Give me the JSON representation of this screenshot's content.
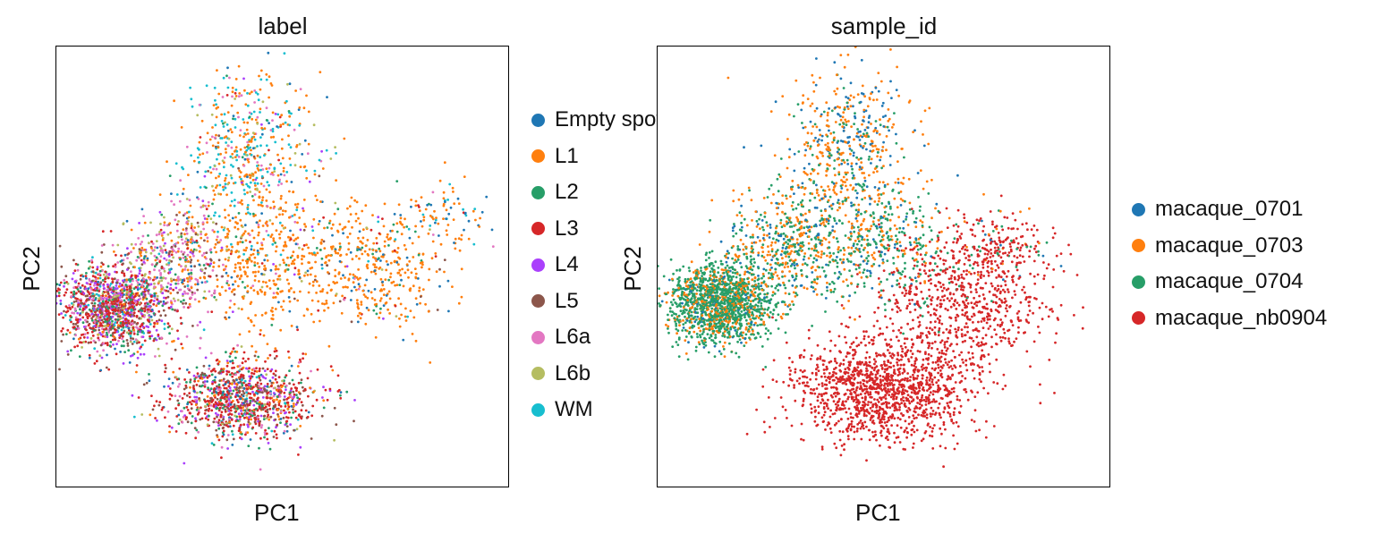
{
  "chart_data": [
    {
      "type": "scatter",
      "title": "label",
      "xlabel": "PC1",
      "ylabel": "PC2",
      "xlim": [
        0,
        100
      ],
      "ylim": [
        0,
        100
      ],
      "grid": false,
      "legend_position": "right",
      "series": [
        {
          "name": "Empty spots",
          "color": "#1f77b4"
        },
        {
          "name": "L1",
          "color": "#ff7f0e"
        },
        {
          "name": "L2",
          "color": "#279e68"
        },
        {
          "name": "L3",
          "color": "#d62728"
        },
        {
          "name": "L4",
          "color": "#aa40fc"
        },
        {
          "name": "L5",
          "color": "#8c564b"
        },
        {
          "name": "L6a",
          "color": "#e377c2"
        },
        {
          "name": "L6b",
          "color": "#b5bd61"
        },
        {
          "name": "WM",
          "color": "#17becf"
        }
      ],
      "clusters": [
        {
          "center": [
            13,
            41
          ],
          "spread": [
            6.5,
            5
          ],
          "n": 1400,
          "mix": [
            0.03,
            0.05,
            0.1,
            0.3,
            0.14,
            0.14,
            0.14,
            0.06,
            0.04
          ]
        },
        {
          "center": [
            28,
            52
          ],
          "spread": [
            6,
            6
          ],
          "n": 400,
          "mix": [
            0.03,
            0.18,
            0.05,
            0.05,
            0.05,
            0.07,
            0.35,
            0.2,
            0.02
          ]
        },
        {
          "center": [
            41,
            20
          ],
          "spread": [
            8,
            4.5
          ],
          "n": 1100,
          "mix": [
            0.05,
            0.08,
            0.12,
            0.35,
            0.12,
            0.14,
            0.08,
            0.04,
            0.02
          ]
        },
        {
          "center": [
            42,
            75
          ],
          "spread": [
            7,
            10
          ],
          "n": 500,
          "mix": [
            0.04,
            0.4,
            0.03,
            0.01,
            0.02,
            0.02,
            0.1,
            0.08,
            0.3
          ]
        },
        {
          "center": [
            48,
            52
          ],
          "spread": [
            10,
            8
          ],
          "n": 500,
          "mix": [
            0.06,
            0.78,
            0.05,
            0.02,
            0.01,
            0.02,
            0.03,
            0.02,
            0.01
          ]
        },
        {
          "center": [
            72,
            50
          ],
          "spread": [
            8,
            7
          ],
          "n": 350,
          "mix": [
            0.12,
            0.72,
            0.06,
            0.02,
            0.01,
            0.02,
            0.01,
            0.02,
            0.02
          ]
        },
        {
          "center": [
            85,
            62
          ],
          "spread": [
            6,
            4
          ],
          "n": 80,
          "mix": [
            0.2,
            0.55,
            0.05,
            0.02,
            0.0,
            0.0,
            0.03,
            0.0,
            0.15
          ]
        }
      ]
    },
    {
      "type": "scatter",
      "title": "sample_id",
      "xlabel": "PC1",
      "ylabel": "PC2",
      "xlim": [
        0,
        100
      ],
      "ylim": [
        0,
        100
      ],
      "grid": false,
      "legend_position": "right",
      "series": [
        {
          "name": "macaque_0701",
          "color": "#1f77b4"
        },
        {
          "name": "macaque_0703",
          "color": "#ff7f0e"
        },
        {
          "name": "macaque_0704",
          "color": "#279e68"
        },
        {
          "name": "macaque_nb0904",
          "color": "#d62728"
        }
      ],
      "clusters": [
        {
          "center": [
            14,
            42
          ],
          "spread": [
            6,
            4.5
          ],
          "n": 1500,
          "mix": [
            0.06,
            0.24,
            0.7,
            0.0
          ]
        },
        {
          "center": [
            30,
            55
          ],
          "spread": [
            7,
            6
          ],
          "n": 500,
          "mix": [
            0.15,
            0.45,
            0.4,
            0.0
          ]
        },
        {
          "center": [
            42,
            76
          ],
          "spread": [
            7,
            10
          ],
          "n": 550,
          "mix": [
            0.3,
            0.55,
            0.15,
            0.0
          ]
        },
        {
          "center": [
            50,
            55
          ],
          "spread": [
            9,
            7
          ],
          "n": 400,
          "mix": [
            0.1,
            0.3,
            0.6,
            0.0
          ]
        },
        {
          "center": [
            50,
            22
          ],
          "spread": [
            10,
            6
          ],
          "n": 1300,
          "mix": [
            0.0,
            0.0,
            0.0,
            1.0
          ]
        },
        {
          "center": [
            68,
            42
          ],
          "spread": [
            9,
            8
          ],
          "n": 700,
          "mix": [
            0.0,
            0.0,
            0.0,
            1.0
          ]
        },
        {
          "center": [
            76,
            55
          ],
          "spread": [
            6,
            4
          ],
          "n": 150,
          "mix": [
            0.03,
            0.05,
            0.12,
            0.8
          ]
        }
      ]
    }
  ],
  "legend_overflow_label": "Empty sp"
}
